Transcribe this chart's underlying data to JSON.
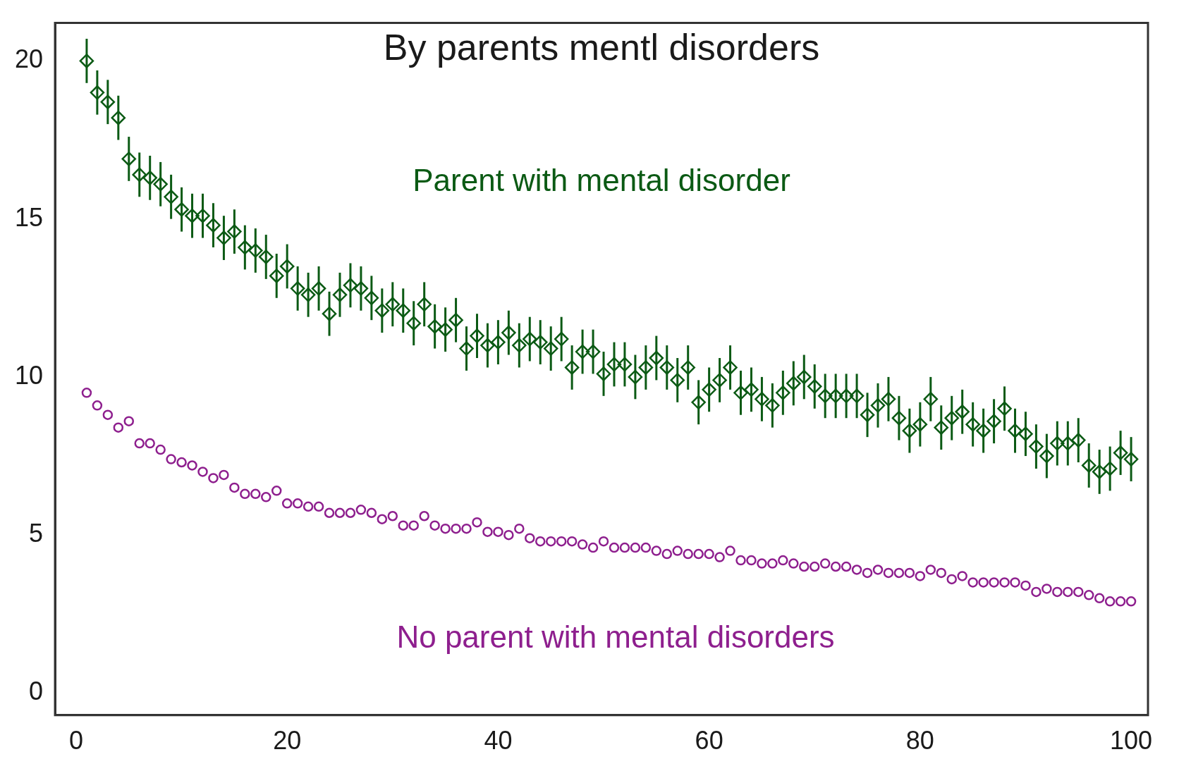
{
  "chart_data": {
    "type": "scatter",
    "title": "By parents mentl disorders",
    "x": [
      1,
      2,
      3,
      4,
      5,
      6,
      7,
      8,
      9,
      10,
      11,
      12,
      13,
      14,
      15,
      16,
      17,
      18,
      19,
      20,
      21,
      22,
      23,
      24,
      25,
      26,
      27,
      28,
      29,
      30,
      31,
      32,
      33,
      34,
      35,
      36,
      37,
      38,
      39,
      40,
      41,
      42,
      43,
      44,
      45,
      46,
      47,
      48,
      49,
      50,
      51,
      52,
      53,
      54,
      55,
      56,
      57,
      58,
      59,
      60,
      61,
      62,
      63,
      64,
      65,
      66,
      67,
      68,
      69,
      70,
      71,
      72,
      73,
      74,
      75,
      76,
      77,
      78,
      79,
      80,
      81,
      82,
      83,
      84,
      85,
      86,
      87,
      88,
      89,
      90,
      91,
      92,
      93,
      94,
      95,
      96,
      97,
      98,
      99,
      100
    ],
    "series": [
      {
        "name": "Parent with mental disorder",
        "color": "#0b5a14",
        "marker": "diamond",
        "values": [
          20,
          19,
          18.7,
          18.2,
          16.9,
          16.4,
          16.3,
          16.1,
          15.7,
          15.3,
          15.1,
          15.1,
          14.8,
          14.4,
          14.6,
          14.1,
          14,
          13.8,
          13.2,
          13.5,
          12.8,
          12.6,
          12.8,
          12,
          12.6,
          12.9,
          12.8,
          12.5,
          12.1,
          12.3,
          12.1,
          11.7,
          12.3,
          11.6,
          11.5,
          11.8,
          10.9,
          11.3,
          11,
          11.1,
          11.4,
          11,
          11.2,
          11.1,
          10.9,
          11.2,
          10.3,
          10.8,
          10.8,
          10.1,
          10.4,
          10.4,
          10,
          10.3,
          10.6,
          10.3,
          9.9,
          10.3,
          9.2,
          9.6,
          9.9,
          10.3,
          9.5,
          9.6,
          9.3,
          9.1,
          9.5,
          9.8,
          10,
          9.7,
          9.4,
          9.4,
          9.4,
          9.4,
          8.8,
          9.1,
          9.3,
          8.7,
          8.3,
          8.5,
          9.3,
          8.4,
          8.7,
          8.9,
          8.5,
          8.3,
          8.6,
          9,
          8.3,
          8.2,
          7.8,
          7.5,
          7.9,
          7.9,
          8,
          7.2,
          7,
          7.1,
          7.6,
          7.4
        ],
        "errors": [
          0.7,
          0.7,
          0.7,
          0.7,
          0.7,
          0.7,
          0.7,
          0.7,
          0.7,
          0.7,
          0.7,
          0.7,
          0.7,
          0.7,
          0.7,
          0.7,
          0.7,
          0.7,
          0.7,
          0.7,
          0.7,
          0.7,
          0.7,
          0.7,
          0.7,
          0.7,
          0.7,
          0.7,
          0.7,
          0.7,
          0.7,
          0.7,
          0.7,
          0.7,
          0.7,
          0.7,
          0.7,
          0.7,
          0.7,
          0.7,
          0.7,
          0.7,
          0.7,
          0.7,
          0.7,
          0.7,
          0.7,
          0.7,
          0.7,
          0.7,
          0.7,
          0.7,
          0.7,
          0.7,
          0.7,
          0.7,
          0.7,
          0.7,
          0.7,
          0.7,
          0.7,
          0.7,
          0.7,
          0.7,
          0.7,
          0.7,
          0.7,
          0.7,
          0.7,
          0.7,
          0.7,
          0.7,
          0.7,
          0.7,
          0.7,
          0.7,
          0.7,
          0.7,
          0.7,
          0.7,
          0.7,
          0.7,
          0.7,
          0.7,
          0.7,
          0.7,
          0.7,
          0.7,
          0.7,
          0.7,
          0.7,
          0.7,
          0.7,
          0.7,
          0.7,
          0.7,
          0.7,
          0.7,
          0.7,
          0.7
        ]
      },
      {
        "name": "No parent with mental disorders",
        "color": "#8e1f8e",
        "marker": "circle",
        "values": [
          9.5,
          9.1,
          8.8,
          8.4,
          8.6,
          7.9,
          7.9,
          7.7,
          7.4,
          7.3,
          7.2,
          7,
          6.8,
          6.9,
          6.5,
          6.3,
          6.3,
          6.2,
          6.4,
          6,
          6,
          5.9,
          5.9,
          5.7,
          5.7,
          5.7,
          5.8,
          5.7,
          5.5,
          5.6,
          5.3,
          5.3,
          5.6,
          5.3,
          5.2,
          5.2,
          5.2,
          5.4,
          5.1,
          5.1,
          5,
          5.2,
          4.9,
          4.8,
          4.8,
          4.8,
          4.8,
          4.7,
          4.6,
          4.8,
          4.6,
          4.6,
          4.6,
          4.6,
          4.5,
          4.4,
          4.5,
          4.4,
          4.4,
          4.4,
          4.3,
          4.5,
          4.2,
          4.2,
          4.1,
          4.1,
          4.2,
          4.1,
          4,
          4,
          4.1,
          4,
          4,
          3.9,
          3.8,
          3.9,
          3.8,
          3.8,
          3.8,
          3.7,
          3.9,
          3.8,
          3.6,
          3.7,
          3.5,
          3.5,
          3.5,
          3.5,
          3.5,
          3.4,
          3.2,
          3.3,
          3.2,
          3.2,
          3.2,
          3.1,
          3,
          2.9,
          2.9,
          2.9
        ]
      }
    ],
    "xlim": [
      -2,
      101.6
    ],
    "xticks": [
      0,
      20,
      40,
      60,
      80,
      100
    ],
    "ylim": [
      -0.7,
      21.2
    ],
    "yticks": [
      0,
      5,
      10,
      15,
      20
    ],
    "grid": false,
    "legend": false
  }
}
